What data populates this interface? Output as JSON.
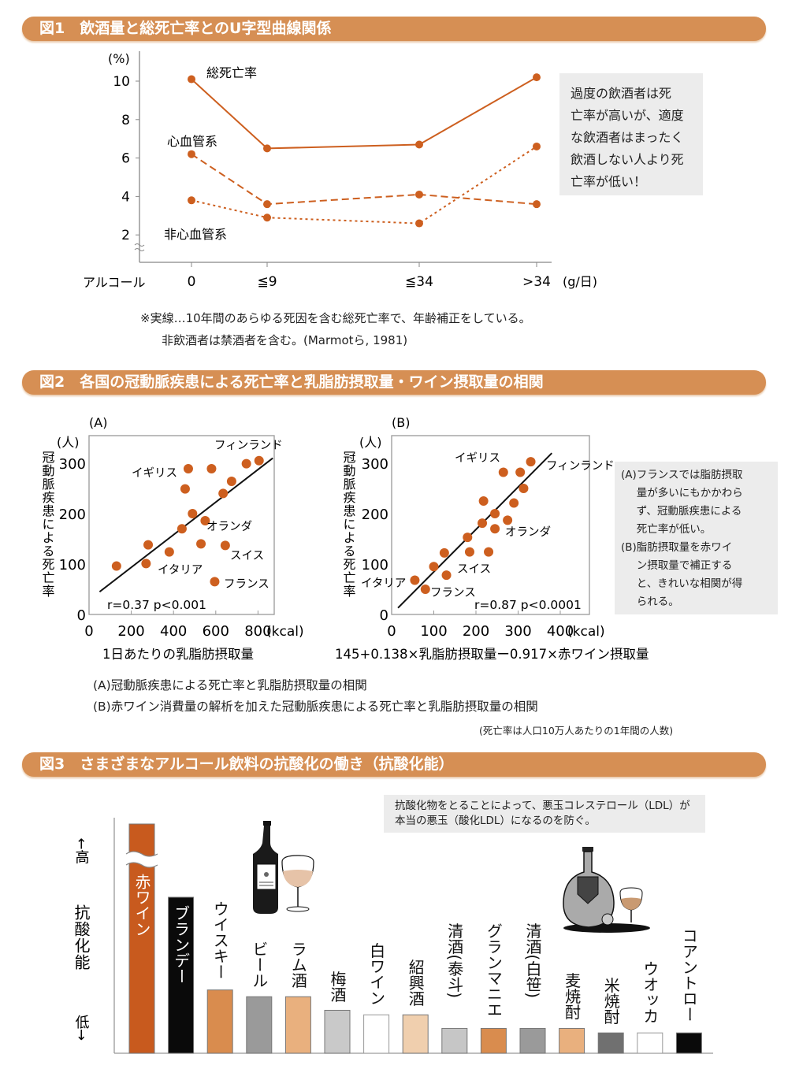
{
  "fig1": {
    "title": "図1　飲酒量と総死亡率とのU字型曲線関係",
    "note_box": [
      "過度の飲酒者は死",
      "亡率が高いが、適度",
      "な飲酒者はまったく",
      "飲酒しない人より死",
      "亡率が低い！"
    ],
    "footnote": [
      "※実線…10年間のあらゆる死因を含む総死亡率で、年齢補正をしている。",
      "非飲酒者は禁酒者を含む。(Marmotら, 1981)"
    ]
  },
  "fig2": {
    "title": "図2　各国の冠動脈疾患による死亡率と乳脂肪摂取量・ワイン摂取量の相関",
    "note_box": [
      {
        "prefix": "(A)",
        "lines": [
          "フランスでは脂肪摂取",
          "量が多いにもかかわら",
          "ず、冠動脈疾患による",
          "死亡率が低い。"
        ]
      },
      {
        "prefix": "(B)",
        "lines": [
          "脂肪摂取量を赤ワイ",
          "ン摂取量で補正する",
          "と、きれいな相関が得",
          "られる。"
        ]
      }
    ],
    "captions": [
      "(A)冠動脈疾患による死亡率と乳脂肪摂取量の相関",
      "(B)赤ワイン消費量の解析を加えた冠動脈疾患による死亡率と乳脂肪摂取量の相関"
    ],
    "unit_note": "(死亡率は人口10万人あたりの1年間の人数)"
  },
  "fig3": {
    "title": "図3　さまざまなアルコール飲料の抗酸化の働き（抗酸化能）",
    "note_box": [
      "抗酸化物をとることによって、悪玉コレステロール（LDL）が",
      "本当の悪玉（酸化LDL）になるのを防ぐ。"
    ]
  },
  "chart_data": [
    {
      "type": "line",
      "title": "飲酒量と総死亡率とのU字型曲線関係",
      "xlabel": "アルコール",
      "x_unit": "(g/日)",
      "ylabel": "(%)",
      "categories": [
        "0",
        "≦9",
        "≦34",
        ">34"
      ],
      "yticks": [
        "10",
        "8",
        "6",
        "4",
        "2"
      ],
      "ylim": [
        1,
        11
      ],
      "series": [
        {
          "name": "総死亡率",
          "style": "solid",
          "values": [
            10.1,
            6.5,
            6.7,
            10.2
          ]
        },
        {
          "name": "心血管系",
          "style": "dashed",
          "values": [
            6.2,
            3.6,
            4.1,
            3.6
          ]
        },
        {
          "name": "非心血管系",
          "style": "dotted",
          "values": [
            3.8,
            2.9,
            2.6,
            6.6
          ]
        }
      ]
    },
    {
      "type": "scatter",
      "panel": "(A)",
      "ylabel": "冠動脈疾患による死亡率",
      "y_unit": "(人)",
      "xlabel": "1日あたりの乳脂肪摂取量",
      "x_unit": "(kcal)",
      "xticks": [
        "0",
        "200",
        "400",
        "600",
        "800"
      ],
      "yticks": [
        "0",
        "100",
        "200",
        "300"
      ],
      "xlim": [
        0,
        880
      ],
      "ylim": [
        0,
        350
      ],
      "stat": "r=0.37 p<0.001",
      "fit": [
        [
          50,
          45
        ],
        [
          870,
          310
        ]
      ],
      "points": [
        [
          130,
          96
        ],
        [
          270,
          101
        ],
        [
          280,
          138
        ],
        [
          380,
          124
        ],
        [
          440,
          170
        ],
        [
          455,
          249
        ],
        [
          470,
          289
        ],
        [
          490,
          200
        ],
        [
          530,
          140
        ],
        [
          550,
          186
        ],
        [
          580,
          289
        ],
        [
          595,
          65
        ],
        [
          635,
          240
        ],
        [
          645,
          137
        ],
        [
          675,
          264
        ],
        [
          745,
          299
        ],
        [
          805,
          305
        ]
      ],
      "labels": [
        "フィンランド",
        "イギリス",
        "オランダ",
        "スイス",
        "イタリア",
        "フランス"
      ]
    },
    {
      "type": "scatter",
      "panel": "(B)",
      "ylabel": "冠動脈疾患による死亡率",
      "y_unit": "(人)",
      "xlabel": "145+0.138×乳脂肪摂取量ー0.917×赤ワイン摂取量",
      "x_unit": "(kcal)",
      "xticks": [
        "0",
        "100",
        "200",
        "300",
        "400"
      ],
      "yticks": [
        "0",
        "100",
        "200",
        "300"
      ],
      "xlim": [
        0,
        470
      ],
      "ylim": [
        0,
        350
      ],
      "stat": "r=0.87 p<0.0001",
      "fit": [
        [
          15,
          13
        ],
        [
          380,
          320
        ]
      ],
      "points": [
        [
          55,
          68
        ],
        [
          80,
          50
        ],
        [
          100,
          95
        ],
        [
          125,
          122
        ],
        [
          130,
          78
        ],
        [
          180,
          153
        ],
        [
          185,
          124
        ],
        [
          215,
          181
        ],
        [
          218,
          225
        ],
        [
          230,
          124
        ],
        [
          245,
          170
        ],
        [
          245,
          200
        ],
        [
          275,
          187
        ],
        [
          290,
          221
        ],
        [
          265,
          282
        ],
        [
          305,
          282
        ],
        [
          313,
          250
        ],
        [
          330,
          303
        ]
      ],
      "labels": [
        "イギリス",
        "フィンランド",
        "オランダ",
        "スイス",
        "イタリア",
        "フランス"
      ]
    },
    {
      "type": "bar",
      "ylabel": "抗酸化能",
      "y_high": "←高",
      "y_low": "低→",
      "categories": [
        "赤ワイン",
        "ブランデー",
        "ウイスキー",
        "ビール",
        "ラム酒",
        "梅酒",
        "白ワイン",
        "紹興酒",
        "清酒(泰斗)",
        "グランマニエ",
        "清酒(白笹)",
        "麦焼酎",
        "米焼酎",
        "ウオッカ",
        "コアントロー"
      ],
      "values": [
        100,
        69,
        28,
        25,
        25,
        19,
        17,
        17,
        11,
        11,
        11,
        11,
        9,
        9,
        9
      ],
      "colors": [
        "#c85a1e",
        "#0a0a0a",
        "#d98c4e",
        "#9a9a9a",
        "#e9b07e",
        "#c9c9c9",
        "#ffffff",
        "#f0cfae",
        "#c6c6c6",
        "#d98c4e",
        "#9a9a9a",
        "#e9b07e",
        "#707070",
        "#ffffff",
        "#0a0a0a"
      ],
      "label_colors": [
        "#ffffff",
        "#ffffff",
        "#111111",
        "#111111",
        "#111111",
        "#111111",
        "#111111",
        "#111111",
        "#111111",
        "#111111",
        "#111111",
        "#111111",
        "#111111",
        "#111111",
        "#111111"
      ],
      "broken_axis_on": "赤ワイン"
    }
  ],
  "colors": {
    "accent": "#d68f54",
    "marker": "#cd5f1f",
    "note_bg": "#ececec"
  }
}
